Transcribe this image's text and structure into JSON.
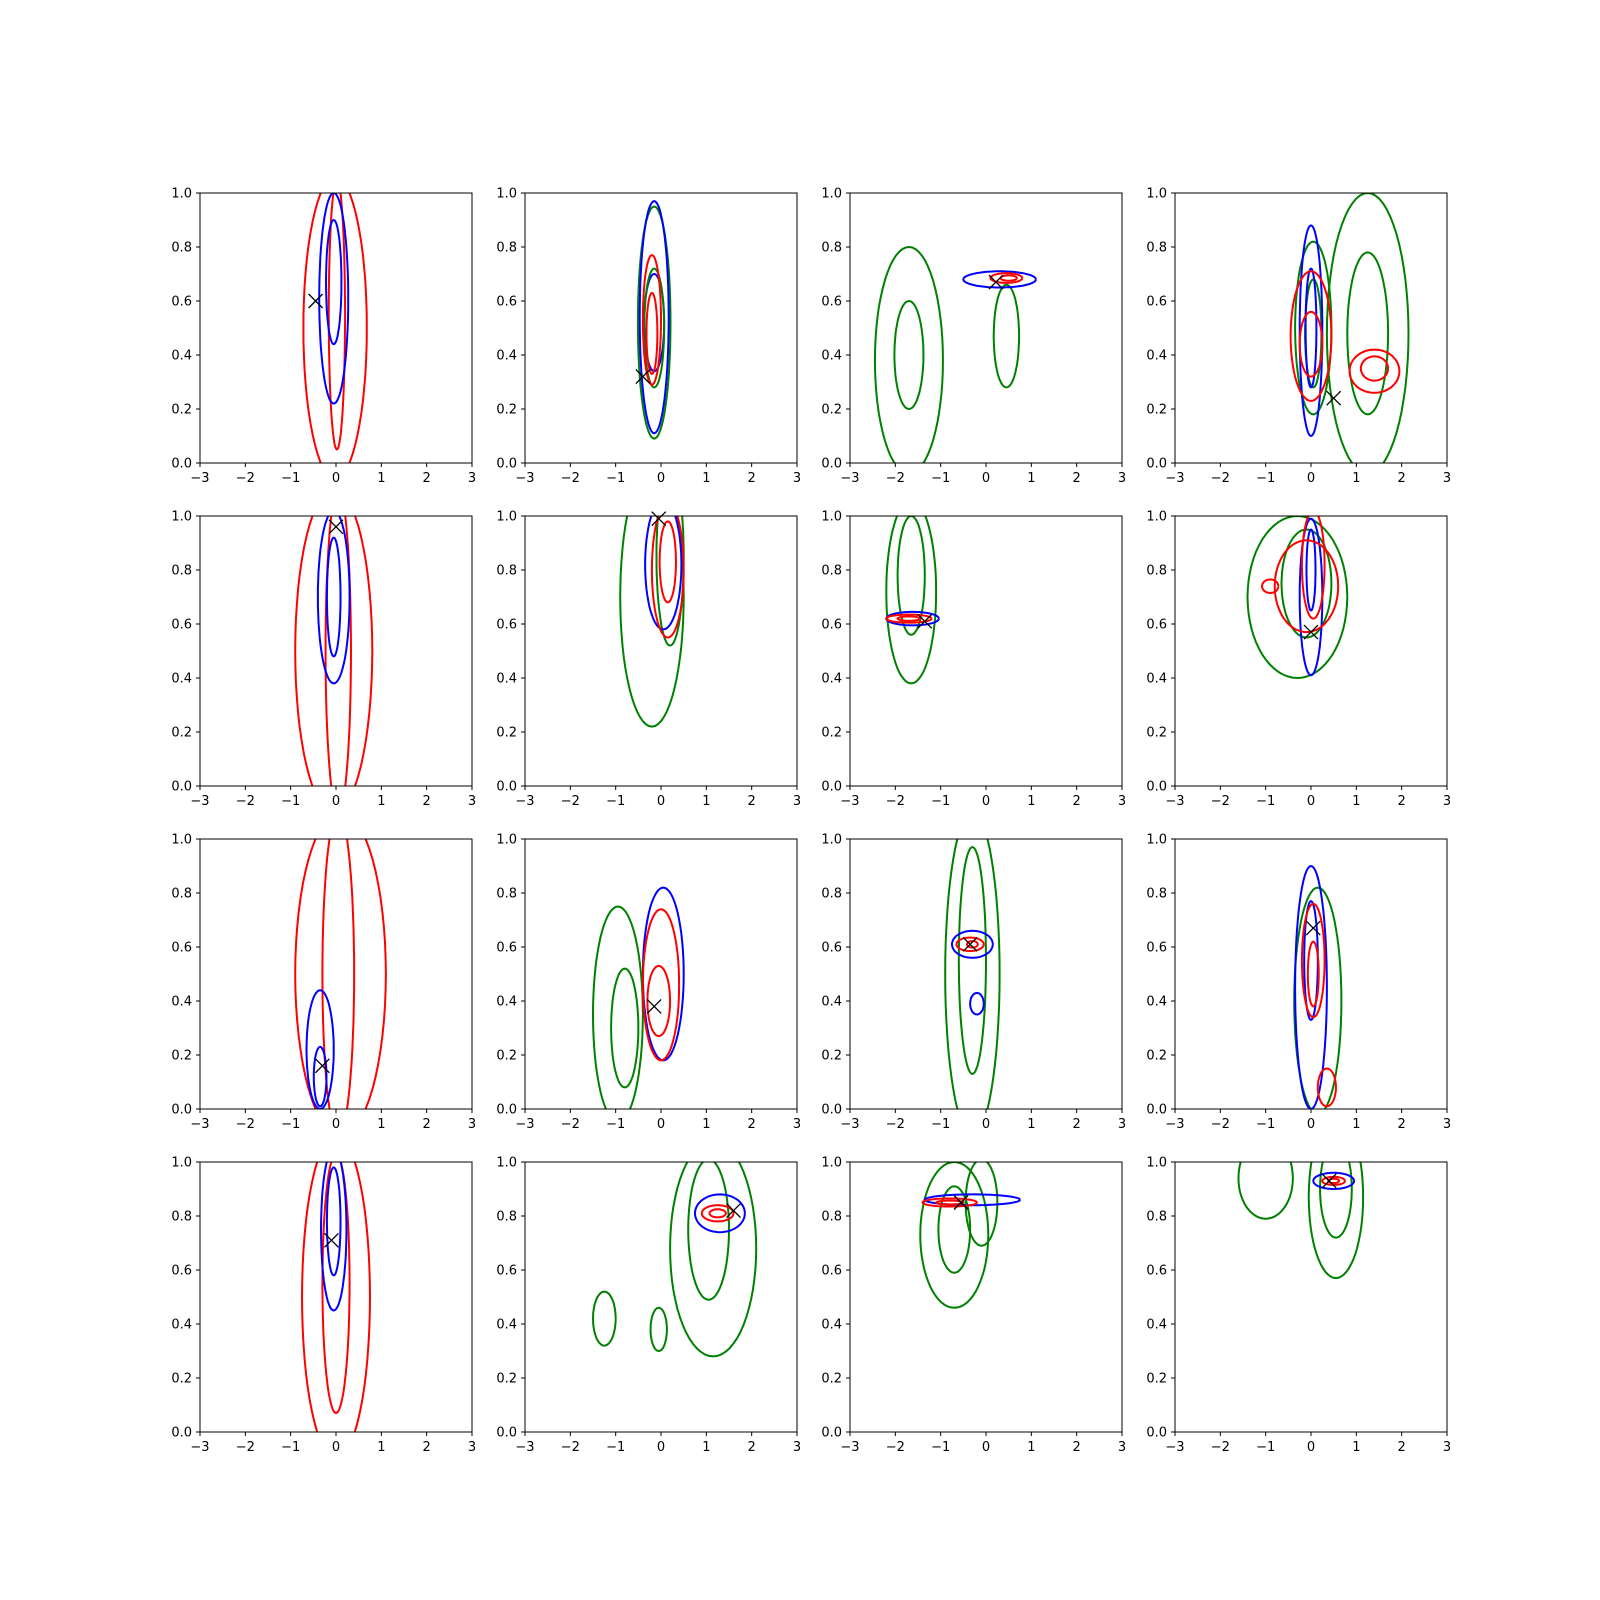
{
  "figure": {
    "background": "#ffffff"
  },
  "colors": {
    "red": "#ff0000",
    "blue": "#0000ff",
    "green": "#008000",
    "marker": "#000000"
  },
  "chart_data": {
    "type": "contour",
    "layout": {
      "rows": 4,
      "cols": 4
    },
    "xlim": [
      -3,
      3
    ],
    "ylim": [
      0,
      1
    ],
    "xticks": [
      "−3",
      "−2",
      "−1",
      "0",
      "1",
      "2",
      "3"
    ],
    "yticks": [
      "0.0",
      "0.2",
      "0.4",
      "0.6",
      "0.8",
      "1.0"
    ],
    "grid": false,
    "panels": [
      {
        "marker": [
          -0.45,
          0.6
        ],
        "contours": [
          {
            "color": "red",
            "cx": -0.02,
            "cy": 0.5,
            "sx": 0.7,
            "sy": 0.56
          },
          {
            "color": "red",
            "cx": 0.02,
            "cy": 0.55,
            "sx": 0.18,
            "sy": 0.5
          },
          {
            "color": "blue",
            "cx": -0.05,
            "cy": 0.61,
            "sx": 0.32,
            "sy": 0.39
          },
          {
            "color": "blue",
            "cx": -0.05,
            "cy": 0.67,
            "sx": 0.17,
            "sy": 0.23
          }
        ]
      },
      {
        "marker": [
          -0.4,
          0.32
        ],
        "contours": [
          {
            "color": "green",
            "cx": -0.15,
            "cy": 0.52,
            "sx": 0.36,
            "sy": 0.43
          },
          {
            "color": "blue",
            "cx": -0.15,
            "cy": 0.54,
            "sx": 0.32,
            "sy": 0.43
          },
          {
            "color": "blue",
            "cx": -0.15,
            "cy": 0.52,
            "sx": 0.22,
            "sy": 0.18
          },
          {
            "color": "green",
            "cx": -0.15,
            "cy": 0.5,
            "sx": 0.22,
            "sy": 0.22
          },
          {
            "color": "red",
            "cx": -0.2,
            "cy": 0.53,
            "sx": 0.2,
            "sy": 0.24
          },
          {
            "color": "red",
            "cx": -0.2,
            "cy": 0.48,
            "sx": 0.12,
            "sy": 0.15
          }
        ]
      },
      {
        "marker": [
          0.22,
          0.67
        ],
        "contours": [
          {
            "color": "green",
            "cx": -1.7,
            "cy": 0.38,
            "sx": 0.75,
            "sy": 0.42
          },
          {
            "color": "green",
            "cx": -1.7,
            "cy": 0.4,
            "sx": 0.32,
            "sy": 0.2
          },
          {
            "color": "green",
            "cx": 0.45,
            "cy": 0.47,
            "sx": 0.28,
            "sy": 0.19
          },
          {
            "color": "blue",
            "cx": 0.3,
            "cy": 0.68,
            "sx": 0.8,
            "sy": 0.03
          },
          {
            "color": "red",
            "cx": 0.45,
            "cy": 0.685,
            "sx": 0.35,
            "sy": 0.018
          },
          {
            "color": "red",
            "cx": 0.5,
            "cy": 0.685,
            "sx": 0.18,
            "sy": 0.01
          }
        ]
      },
      {
        "marker": [
          0.5,
          0.24
        ],
        "contours": [
          {
            "color": "green",
            "cx": 0.05,
            "cy": 0.5,
            "sx": 0.4,
            "sy": 0.32
          },
          {
            "color": "green",
            "cx": 0.05,
            "cy": 0.48,
            "sx": 0.18,
            "sy": 0.2
          },
          {
            "color": "green",
            "cx": 1.25,
            "cy": 0.48,
            "sx": 0.9,
            "sy": 0.52
          },
          {
            "color": "green",
            "cx": 1.25,
            "cy": 0.48,
            "sx": 0.45,
            "sy": 0.3
          },
          {
            "color": "blue",
            "cx": 0.0,
            "cy": 0.49,
            "sx": 0.25,
            "sy": 0.39
          },
          {
            "color": "blue",
            "cx": 0.0,
            "cy": 0.5,
            "sx": 0.12,
            "sy": 0.22
          },
          {
            "color": "red",
            "cx": 0.0,
            "cy": 0.47,
            "sx": 0.45,
            "sy": 0.24
          },
          {
            "color": "red",
            "cx": 0.0,
            "cy": 0.44,
            "sx": 0.25,
            "sy": 0.12
          },
          {
            "color": "red",
            "cx": 1.4,
            "cy": 0.34,
            "sx": 0.55,
            "sy": 0.08
          },
          {
            "color": "red",
            "cx": 1.4,
            "cy": 0.35,
            "sx": 0.3,
            "sy": 0.045
          }
        ]
      },
      {
        "marker": [
          0.0,
          0.96
        ],
        "contours": [
          {
            "color": "red",
            "cx": -0.05,
            "cy": 0.5,
            "sx": 0.85,
            "sy": 0.6
          },
          {
            "color": "red",
            "cx": 0.05,
            "cy": 0.5,
            "sx": 0.28,
            "sy": 0.6
          },
          {
            "color": "blue",
            "cx": -0.05,
            "cy": 0.7,
            "sx": 0.35,
            "sy": 0.32
          },
          {
            "color": "blue",
            "cx": -0.05,
            "cy": 0.7,
            "sx": 0.15,
            "sy": 0.22
          }
        ]
      },
      {
        "marker": [
          -0.05,
          0.99
        ],
        "contours": [
          {
            "color": "green",
            "cx": -0.2,
            "cy": 0.7,
            "sx": 0.7,
            "sy": 0.48
          },
          {
            "color": "green",
            "cx": 0.2,
            "cy": 0.85,
            "sx": 0.3,
            "sy": 0.33
          },
          {
            "color": "blue",
            "cx": 0.05,
            "cy": 0.82,
            "sx": 0.4,
            "sy": 0.24
          },
          {
            "color": "red",
            "cx": 0.15,
            "cy": 0.8,
            "sx": 0.35,
            "sy": 0.25
          },
          {
            "color": "red",
            "cx": 0.15,
            "cy": 0.83,
            "sx": 0.18,
            "sy": 0.15
          }
        ]
      },
      {
        "marker": [
          -1.35,
          0.61
        ],
        "contours": [
          {
            "color": "green",
            "cx": -1.65,
            "cy": 0.72,
            "sx": 0.55,
            "sy": 0.34
          },
          {
            "color": "green",
            "cx": -1.65,
            "cy": 0.78,
            "sx": 0.3,
            "sy": 0.22
          },
          {
            "color": "blue",
            "cx": -1.62,
            "cy": 0.62,
            "sx": 0.58,
            "sy": 0.025
          },
          {
            "color": "red",
            "cx": -1.7,
            "cy": 0.62,
            "sx": 0.5,
            "sy": 0.015
          },
          {
            "color": "red",
            "cx": -1.7,
            "cy": 0.62,
            "sx": 0.25,
            "sy": 0.008
          }
        ]
      },
      {
        "marker": [
          0.0,
          0.57
        ],
        "contours": [
          {
            "color": "green",
            "cx": -0.3,
            "cy": 0.7,
            "sx": 1.1,
            "sy": 0.3
          },
          {
            "color": "green",
            "cx": -0.1,
            "cy": 0.75,
            "sx": 0.55,
            "sy": 0.2
          },
          {
            "color": "blue",
            "cx": 0.0,
            "cy": 0.7,
            "sx": 0.25,
            "sy": 0.29
          },
          {
            "color": "blue",
            "cx": 0.0,
            "cy": 0.8,
            "sx": 0.1,
            "sy": 0.15
          },
          {
            "color": "red",
            "cx": -0.1,
            "cy": 0.74,
            "sx": 0.7,
            "sy": 0.17
          },
          {
            "color": "red",
            "cx": -0.9,
            "cy": 0.74,
            "sx": 0.18,
            "sy": 0.025
          },
          {
            "color": "red",
            "cx": 0.05,
            "cy": 0.82,
            "sx": 0.25,
            "sy": 0.2
          }
        ]
      },
      {
        "marker": [
          -0.3,
          0.16
        ],
        "contours": [
          {
            "color": "red",
            "cx": 0.1,
            "cy": 0.5,
            "sx": 1.0,
            "sy": 0.6
          },
          {
            "color": "red",
            "cx": 0.05,
            "cy": 0.5,
            "sx": 0.35,
            "sy": 0.6
          },
          {
            "color": "blue",
            "cx": -0.35,
            "cy": 0.22,
            "sx": 0.3,
            "sy": 0.22
          },
          {
            "color": "blue",
            "cx": -0.35,
            "cy": 0.12,
            "sx": 0.14,
            "sy": 0.11
          }
        ]
      },
      {
        "marker": [
          -0.15,
          0.38
        ],
        "contours": [
          {
            "color": "green",
            "cx": -0.95,
            "cy": 0.35,
            "sx": 0.55,
            "sy": 0.4
          },
          {
            "color": "green",
            "cx": -0.8,
            "cy": 0.3,
            "sx": 0.3,
            "sy": 0.22
          },
          {
            "color": "blue",
            "cx": 0.05,
            "cy": 0.5,
            "sx": 0.45,
            "sy": 0.32
          },
          {
            "color": "red",
            "cx": 0.0,
            "cy": 0.46,
            "sx": 0.4,
            "sy": 0.28
          },
          {
            "color": "red",
            "cx": -0.05,
            "cy": 0.4,
            "sx": 0.25,
            "sy": 0.13
          }
        ]
      },
      {
        "marker": [
          -0.35,
          0.61
        ],
        "contours": [
          {
            "color": "green",
            "cx": -0.3,
            "cy": 0.5,
            "sx": 0.6,
            "sy": 0.6
          },
          {
            "color": "green",
            "cx": -0.3,
            "cy": 0.55,
            "sx": 0.3,
            "sy": 0.42
          },
          {
            "color": "blue",
            "cx": -0.3,
            "cy": 0.61,
            "sx": 0.45,
            "sy": 0.05
          },
          {
            "color": "blue",
            "cx": -0.2,
            "cy": 0.39,
            "sx": 0.15,
            "sy": 0.04
          },
          {
            "color": "red",
            "cx": -0.35,
            "cy": 0.61,
            "sx": 0.3,
            "sy": 0.025
          },
          {
            "color": "red",
            "cx": -0.3,
            "cy": 0.61,
            "sx": 0.12,
            "sy": 0.012
          }
        ]
      },
      {
        "marker": [
          0.05,
          0.67
        ],
        "contours": [
          {
            "color": "green",
            "cx": 0.15,
            "cy": 0.4,
            "sx": 0.52,
            "sy": 0.42
          },
          {
            "color": "blue",
            "cx": 0.0,
            "cy": 0.45,
            "sx": 0.35,
            "sy": 0.45
          },
          {
            "color": "blue",
            "cx": 0.0,
            "cy": 0.55,
            "sx": 0.15,
            "sy": 0.22
          },
          {
            "color": "red",
            "cx": 0.05,
            "cy": 0.55,
            "sx": 0.25,
            "sy": 0.21
          },
          {
            "color": "red",
            "cx": 0.05,
            "cy": 0.5,
            "sx": 0.12,
            "sy": 0.12
          },
          {
            "color": "red",
            "cx": 0.35,
            "cy": 0.08,
            "sx": 0.2,
            "sy": 0.07
          }
        ]
      },
      {
        "marker": [
          -0.1,
          0.71
        ],
        "contours": [
          {
            "color": "red",
            "cx": 0.0,
            "cy": 0.5,
            "sx": 0.75,
            "sy": 0.6
          },
          {
            "color": "red",
            "cx": 0.0,
            "cy": 0.55,
            "sx": 0.3,
            "sy": 0.48
          },
          {
            "color": "blue",
            "cx": -0.05,
            "cy": 0.75,
            "sx": 0.28,
            "sy": 0.3
          },
          {
            "color": "blue",
            "cx": -0.05,
            "cy": 0.78,
            "sx": 0.15,
            "sy": 0.2
          }
        ]
      },
      {
        "marker": [
          1.6,
          0.82
        ],
        "contours": [
          {
            "color": "green",
            "cx": 1.15,
            "cy": 0.68,
            "sx": 0.95,
            "sy": 0.4
          },
          {
            "color": "green",
            "cx": 1.05,
            "cy": 0.75,
            "sx": 0.45,
            "sy": 0.26
          },
          {
            "color": "green",
            "cx": -1.25,
            "cy": 0.42,
            "sx": 0.25,
            "sy": 0.1
          },
          {
            "color": "green",
            "cx": -0.05,
            "cy": 0.38,
            "sx": 0.18,
            "sy": 0.08
          },
          {
            "color": "blue",
            "cx": 1.3,
            "cy": 0.81,
            "sx": 0.55,
            "sy": 0.07
          },
          {
            "color": "red",
            "cx": 1.25,
            "cy": 0.81,
            "sx": 0.35,
            "sy": 0.03
          },
          {
            "color": "red",
            "cx": 1.25,
            "cy": 0.81,
            "sx": 0.18,
            "sy": 0.015
          }
        ]
      },
      {
        "marker": [
          -0.55,
          0.85
        ],
        "contours": [
          {
            "color": "green",
            "cx": -0.7,
            "cy": 0.73,
            "sx": 0.75,
            "sy": 0.27
          },
          {
            "color": "green",
            "cx": -0.7,
            "cy": 0.75,
            "sx": 0.35,
            "sy": 0.16
          },
          {
            "color": "green",
            "cx": -0.1,
            "cy": 0.85,
            "sx": 0.35,
            "sy": 0.16
          },
          {
            "color": "blue",
            "cx": -0.3,
            "cy": 0.86,
            "sx": 1.05,
            "sy": 0.02
          },
          {
            "color": "red",
            "cx": -0.8,
            "cy": 0.85,
            "sx": 0.6,
            "sy": 0.015
          },
          {
            "color": "red",
            "cx": -0.8,
            "cy": 0.85,
            "sx": 0.3,
            "sy": 0.007
          }
        ]
      },
      {
        "marker": [
          0.4,
          0.93
        ],
        "contours": [
          {
            "color": "green",
            "cx": 0.55,
            "cy": 0.87,
            "sx": 0.6,
            "sy": 0.3
          },
          {
            "color": "green",
            "cx": 0.55,
            "cy": 0.9,
            "sx": 0.35,
            "sy": 0.18
          },
          {
            "color": "green",
            "cx": -1.0,
            "cy": 0.94,
            "sx": 0.6,
            "sy": 0.15
          },
          {
            "color": "blue",
            "cx": 0.5,
            "cy": 0.93,
            "sx": 0.45,
            "sy": 0.03
          },
          {
            "color": "red",
            "cx": 0.5,
            "cy": 0.93,
            "sx": 0.25,
            "sy": 0.015
          },
          {
            "color": "red",
            "cx": 0.5,
            "cy": 0.93,
            "sx": 0.12,
            "sy": 0.008
          }
        ]
      }
    ]
  }
}
